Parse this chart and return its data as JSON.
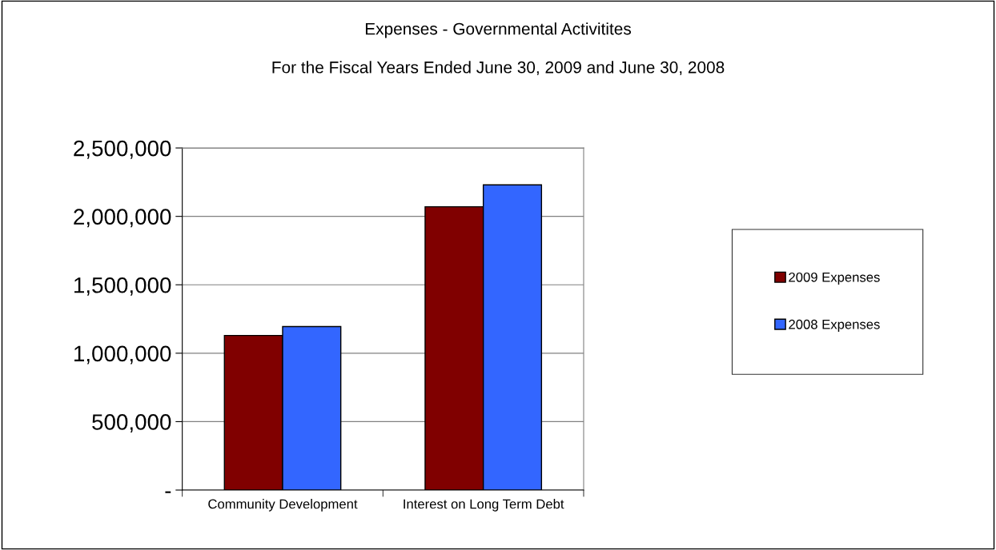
{
  "chart_data": {
    "type": "bar",
    "title": "Expenses - Governmental Activitites",
    "subtitle": "For the Fiscal Years Ended June 30, 2009 and June 30, 2008",
    "categories": [
      "Community Development",
      "Interest on Long Term Debt"
    ],
    "series": [
      {
        "name": "2009 Expenses",
        "color": "#800000",
        "values": [
          1130000,
          2070000
        ]
      },
      {
        "name": "2008 Expenses",
        "color": "#3366ff",
        "values": [
          1195000,
          2230000
        ]
      }
    ],
    "ylim": [
      0,
      2500000
    ],
    "yticks": [
      {
        "value": 0,
        "label": "-"
      },
      {
        "value": 500000,
        "label": "500,000"
      },
      {
        "value": 1000000,
        "label": "1,000,000"
      },
      {
        "value": 1500000,
        "label": "1,500,000"
      },
      {
        "value": 2000000,
        "label": "2,000,000"
      },
      {
        "value": 2500000,
        "label": "2,500,000"
      }
    ],
    "grid": "y",
    "legend": "right"
  }
}
